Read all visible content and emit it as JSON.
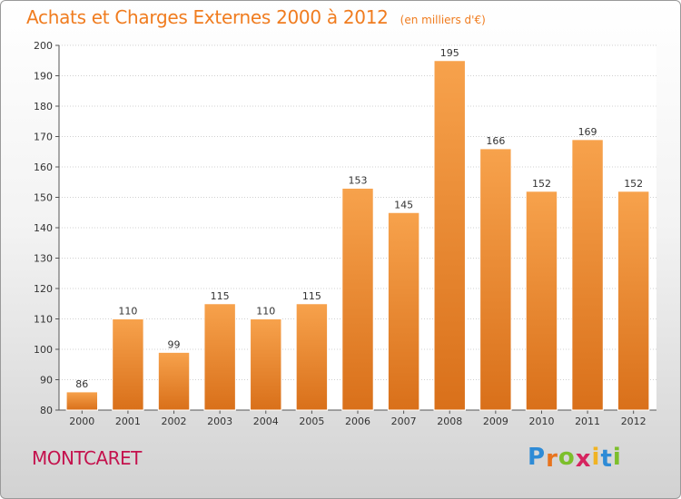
{
  "chart_data": {
    "type": "bar",
    "title": "Achats et Charges Externes 2000 à 2012",
    "unit_note": "(en milliers d'€)",
    "categories": [
      "2000",
      "2001",
      "2002",
      "2003",
      "2004",
      "2005",
      "2006",
      "2007",
      "2008",
      "2009",
      "2010",
      "2011",
      "2012"
    ],
    "values": [
      86,
      110,
      99,
      115,
      110,
      115,
      153,
      145,
      195,
      166,
      152,
      169,
      152
    ],
    "ylim": [
      80,
      200
    ],
    "yticks": [
      80,
      90,
      100,
      110,
      120,
      130,
      140,
      150,
      160,
      170,
      180,
      190,
      200
    ],
    "grid": true,
    "bar_color": "#f28c28"
  },
  "location_label": "MONTCARET",
  "logo": {
    "letters": [
      "P",
      "r",
      "o",
      "x",
      "i",
      "t",
      "i"
    ],
    "colors": [
      "#2e8bd6",
      "#e8741e",
      "#7cbf2b",
      "#d6245f",
      "#f0b323",
      "#2e8bd6",
      "#7cbf2b"
    ]
  }
}
